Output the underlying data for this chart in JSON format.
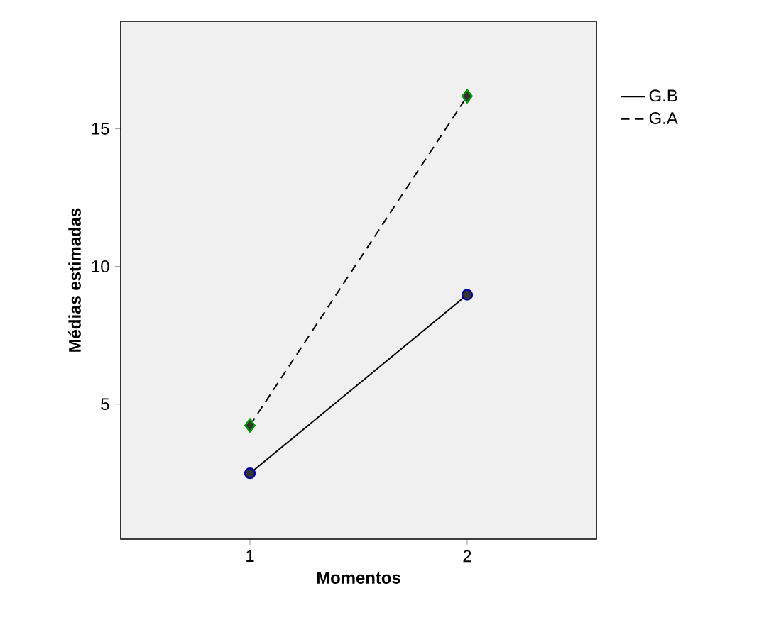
{
  "chart_data": {
    "type": "line",
    "xlabel": "Momentos",
    "ylabel": "Médias estimadas",
    "categories": [
      "1",
      "2"
    ],
    "ylim": [
      0.1,
      18.9
    ],
    "yticks": [
      5,
      10,
      15
    ],
    "legend": "right",
    "series": [
      {
        "name": "G.B",
        "color": "#000000",
        "values": [
          2.49,
          8.97
        ],
        "line_style": "solid",
        "marker": "circle"
      },
      {
        "name": "G.A",
        "color": "#000000",
        "values": [
          4.23,
          16.18
        ],
        "line_style": "dashed",
        "marker": "diamond"
      }
    ]
  }
}
